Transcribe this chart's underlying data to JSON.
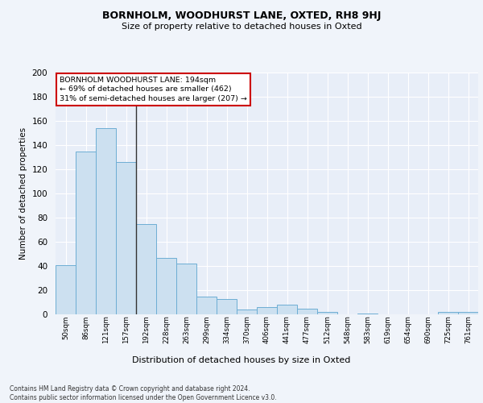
{
  "title1": "BORNHOLM, WOODHURST LANE, OXTED, RH8 9HJ",
  "title2": "Size of property relative to detached houses in Oxted",
  "xlabel": "Distribution of detached houses by size in Oxted",
  "ylabel": "Number of detached properties",
  "categories": [
    "50sqm",
    "86sqm",
    "121sqm",
    "157sqm",
    "192sqm",
    "228sqm",
    "263sqm",
    "299sqm",
    "334sqm",
    "370sqm",
    "406sqm",
    "441sqm",
    "477sqm",
    "512sqm",
    "548sqm",
    "583sqm",
    "619sqm",
    "654sqm",
    "690sqm",
    "725sqm",
    "761sqm"
  ],
  "values": [
    41,
    135,
    154,
    126,
    75,
    47,
    42,
    15,
    13,
    4,
    6,
    8,
    5,
    2,
    0,
    1,
    0,
    0,
    0,
    2,
    2
  ],
  "bar_color": "#cce0f0",
  "bar_edge_color": "#6daed4",
  "annotation_text": "BORNHOLM WOODHURST LANE: 194sqm\n← 69% of detached houses are smaller (462)\n31% of semi-detached houses are larger (207) →",
  "annotation_box_color": "#ffffff",
  "annotation_box_edge_color": "#cc0000",
  "vline_color": "#333333",
  "ylim": [
    0,
    200
  ],
  "yticks": [
    0,
    20,
    40,
    60,
    80,
    100,
    120,
    140,
    160,
    180,
    200
  ],
  "footer": "Contains HM Land Registry data © Crown copyright and database right 2024.\nContains public sector information licensed under the Open Government Licence v3.0.",
  "background_color": "#f0f4fa",
  "plot_background_color": "#e8eef8"
}
